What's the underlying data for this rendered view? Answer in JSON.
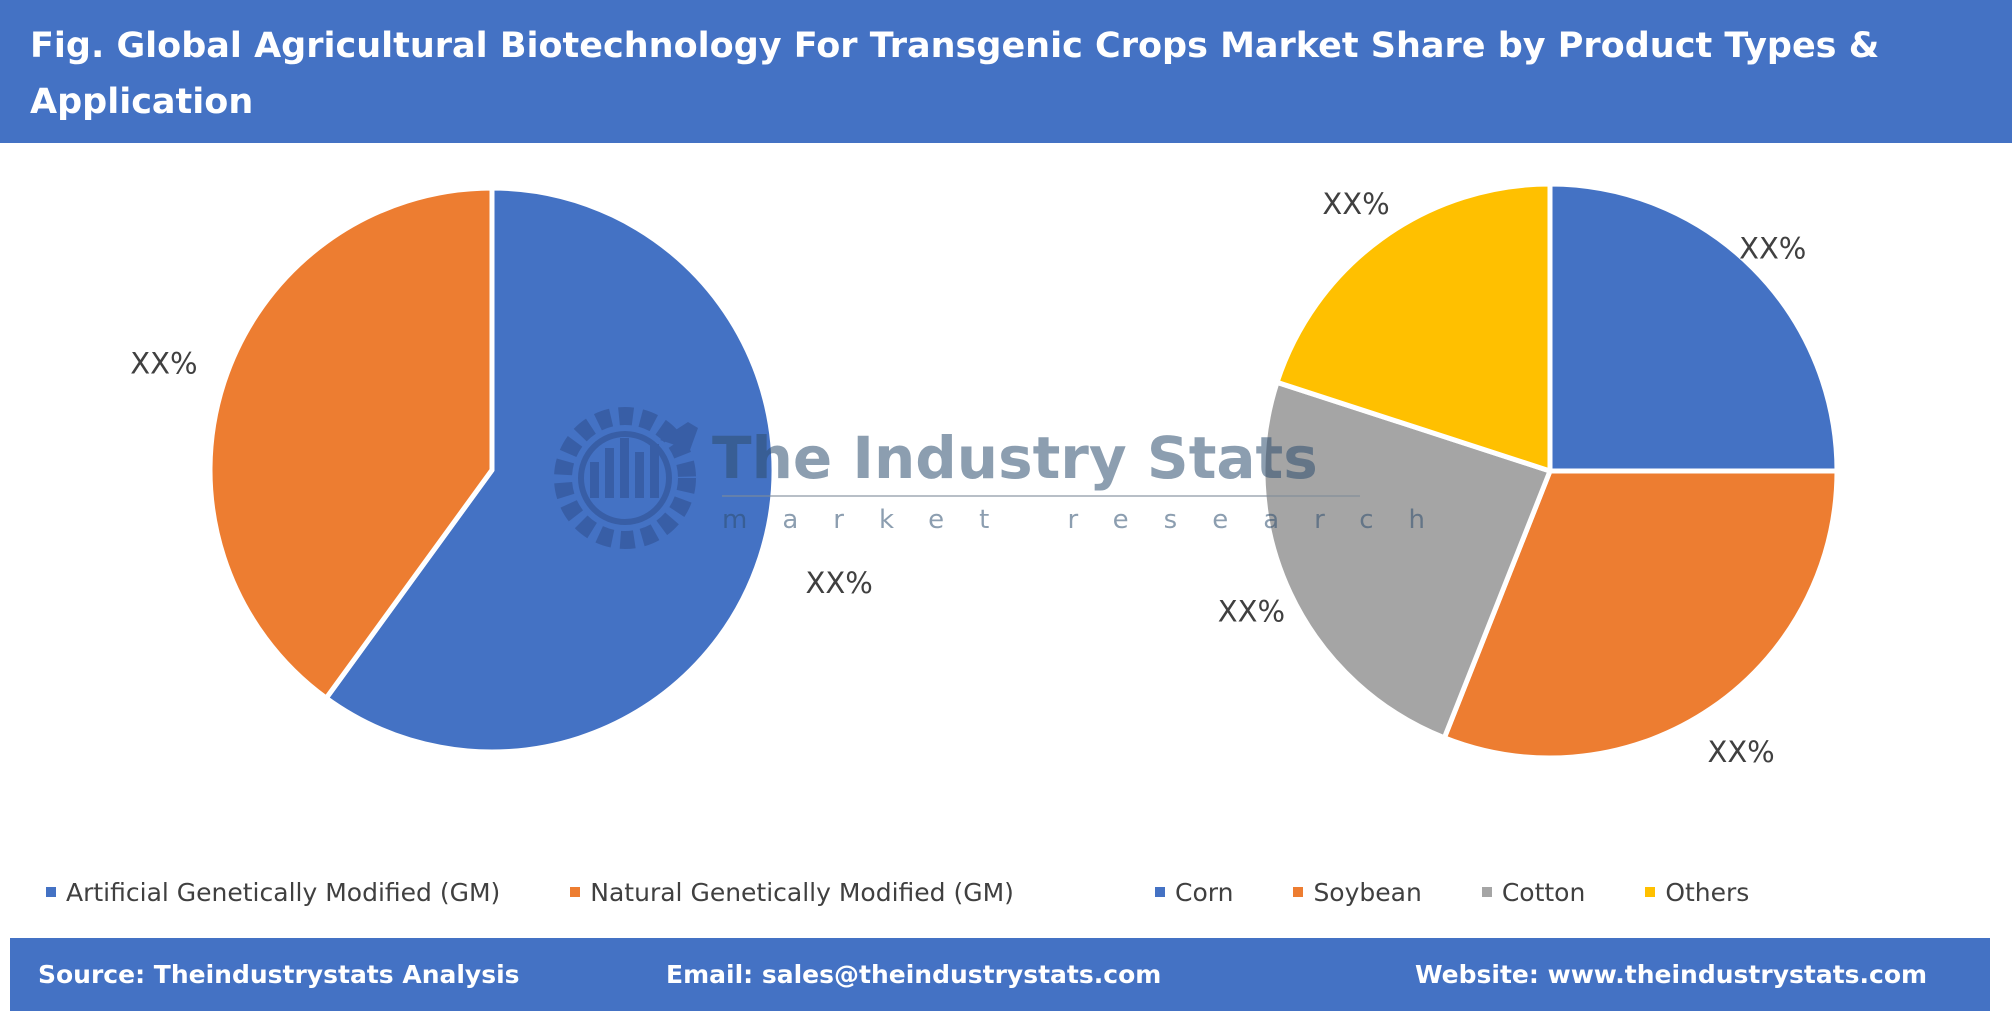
{
  "header": {
    "title": "Fig. Global Agricultural Biotechnology For Transgenic Crops Market Share by Product Types & Application"
  },
  "watermark": {
    "name": "The Industry Stats",
    "tagline": "market research"
  },
  "chart_data": [
    {
      "type": "pie",
      "title": "",
      "categories": [
        "Artificial Genetically Modified (GM)",
        "Natural Genetically Modified (GM)"
      ],
      "values": [
        60,
        40
      ],
      "labels": [
        "XX%",
        "XX%"
      ],
      "colors": [
        "#4472c4",
        "#ed7d31"
      ],
      "legend": "bottom"
    },
    {
      "type": "pie",
      "title": "",
      "categories": [
        "Corn",
        "Soybean",
        "Cotton",
        "Others"
      ],
      "values": [
        25,
        31,
        24,
        20
      ],
      "labels": [
        "XX%",
        "XX%",
        "XX%",
        "XX%"
      ],
      "colors": [
        "#4472c4",
        "#ed7d31",
        "#a5a5a5",
        "#ffc000"
      ],
      "legend": "bottom"
    }
  ],
  "footer": {
    "source": "Source: Theindustrystats Analysis",
    "email": "Email: sales@theindustrystats.com",
    "website": "Website: www.theindustrystats.com"
  }
}
